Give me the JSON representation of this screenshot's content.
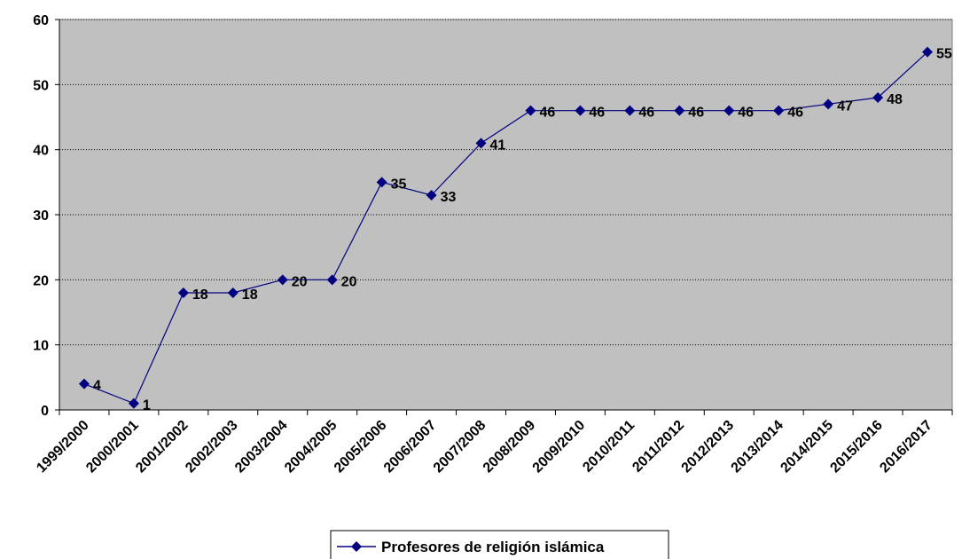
{
  "chart_data": {
    "type": "line",
    "categories": [
      "1999/2000",
      "2000/2001",
      "2001/2002",
      "2002/2003",
      "2003/2004",
      "2004/2005",
      "2005/2006",
      "2006/2007",
      "2007/2008",
      "2008/2009",
      "2009/2010",
      "2010/2011",
      "2011/2012",
      "2012/2013",
      "2013/2014",
      "2014/2015",
      "2015/2016",
      "2016/2017"
    ],
    "series": [
      {
        "name": "Profesores de religión islámica",
        "values": [
          4,
          1,
          18,
          18,
          20,
          20,
          35,
          33,
          41,
          46,
          46,
          46,
          46,
          46,
          46,
          47,
          48,
          55
        ]
      }
    ],
    "ylim": [
      0,
      60
    ],
    "yticks": [
      0,
      10,
      20,
      30,
      40,
      50,
      60
    ],
    "title": "",
    "xlabel": "",
    "ylabel": "",
    "grid": "horizontal dotted",
    "legend_position": "bottom",
    "colors": {
      "plot_bg": "#C0C0C0",
      "series": "#000080",
      "grid": "#000000"
    }
  }
}
